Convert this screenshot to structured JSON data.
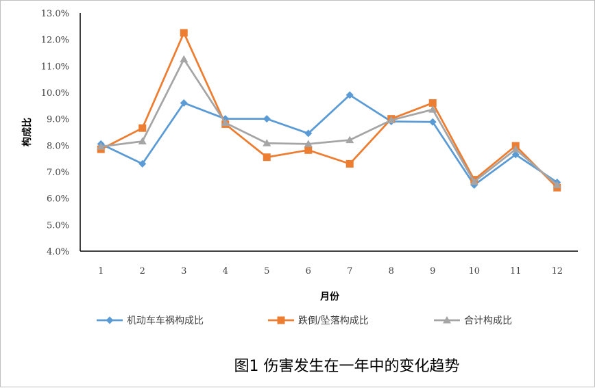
{
  "chart_data": {
    "type": "line",
    "title": "",
    "caption": "图1 伤害发生在一年中的变化趋势",
    "xlabel": "月份",
    "ylabel": "构成比",
    "categories": [
      "1",
      "2",
      "3",
      "4",
      "5",
      "6",
      "7",
      "8",
      "9",
      "10",
      "11",
      "12"
    ],
    "ylim": [
      4.0,
      13.0
    ],
    "yticks": [
      "4.0%",
      "5.0%",
      "6.0%",
      "7.0%",
      "8.0%",
      "9.0%",
      "10.0%",
      "11.0%",
      "12.0%",
      "13.0%"
    ],
    "grid": false,
    "legend_position": "bottom",
    "series": [
      {
        "name": "机动车车祸构成比",
        "color": "#5b9bd5",
        "marker": "diamond",
        "values": [
          8.05,
          7.3,
          9.6,
          9.0,
          9.0,
          8.45,
          9.9,
          8.9,
          8.88,
          6.5,
          7.65,
          6.6
        ]
      },
      {
        "name": "跌倒/坠落构成比",
        "color": "#ed7d31",
        "marker": "square",
        "values": [
          7.85,
          8.65,
          12.25,
          8.8,
          7.55,
          7.82,
          7.3,
          9.0,
          9.6,
          6.7,
          7.98,
          6.4
        ]
      },
      {
        "name": "合计构成比",
        "color": "#a5a5a5",
        "marker": "triangle",
        "values": [
          7.95,
          8.15,
          11.25,
          8.85,
          8.08,
          8.05,
          8.2,
          8.95,
          9.35,
          6.62,
          7.85,
          6.5
        ]
      }
    ]
  }
}
